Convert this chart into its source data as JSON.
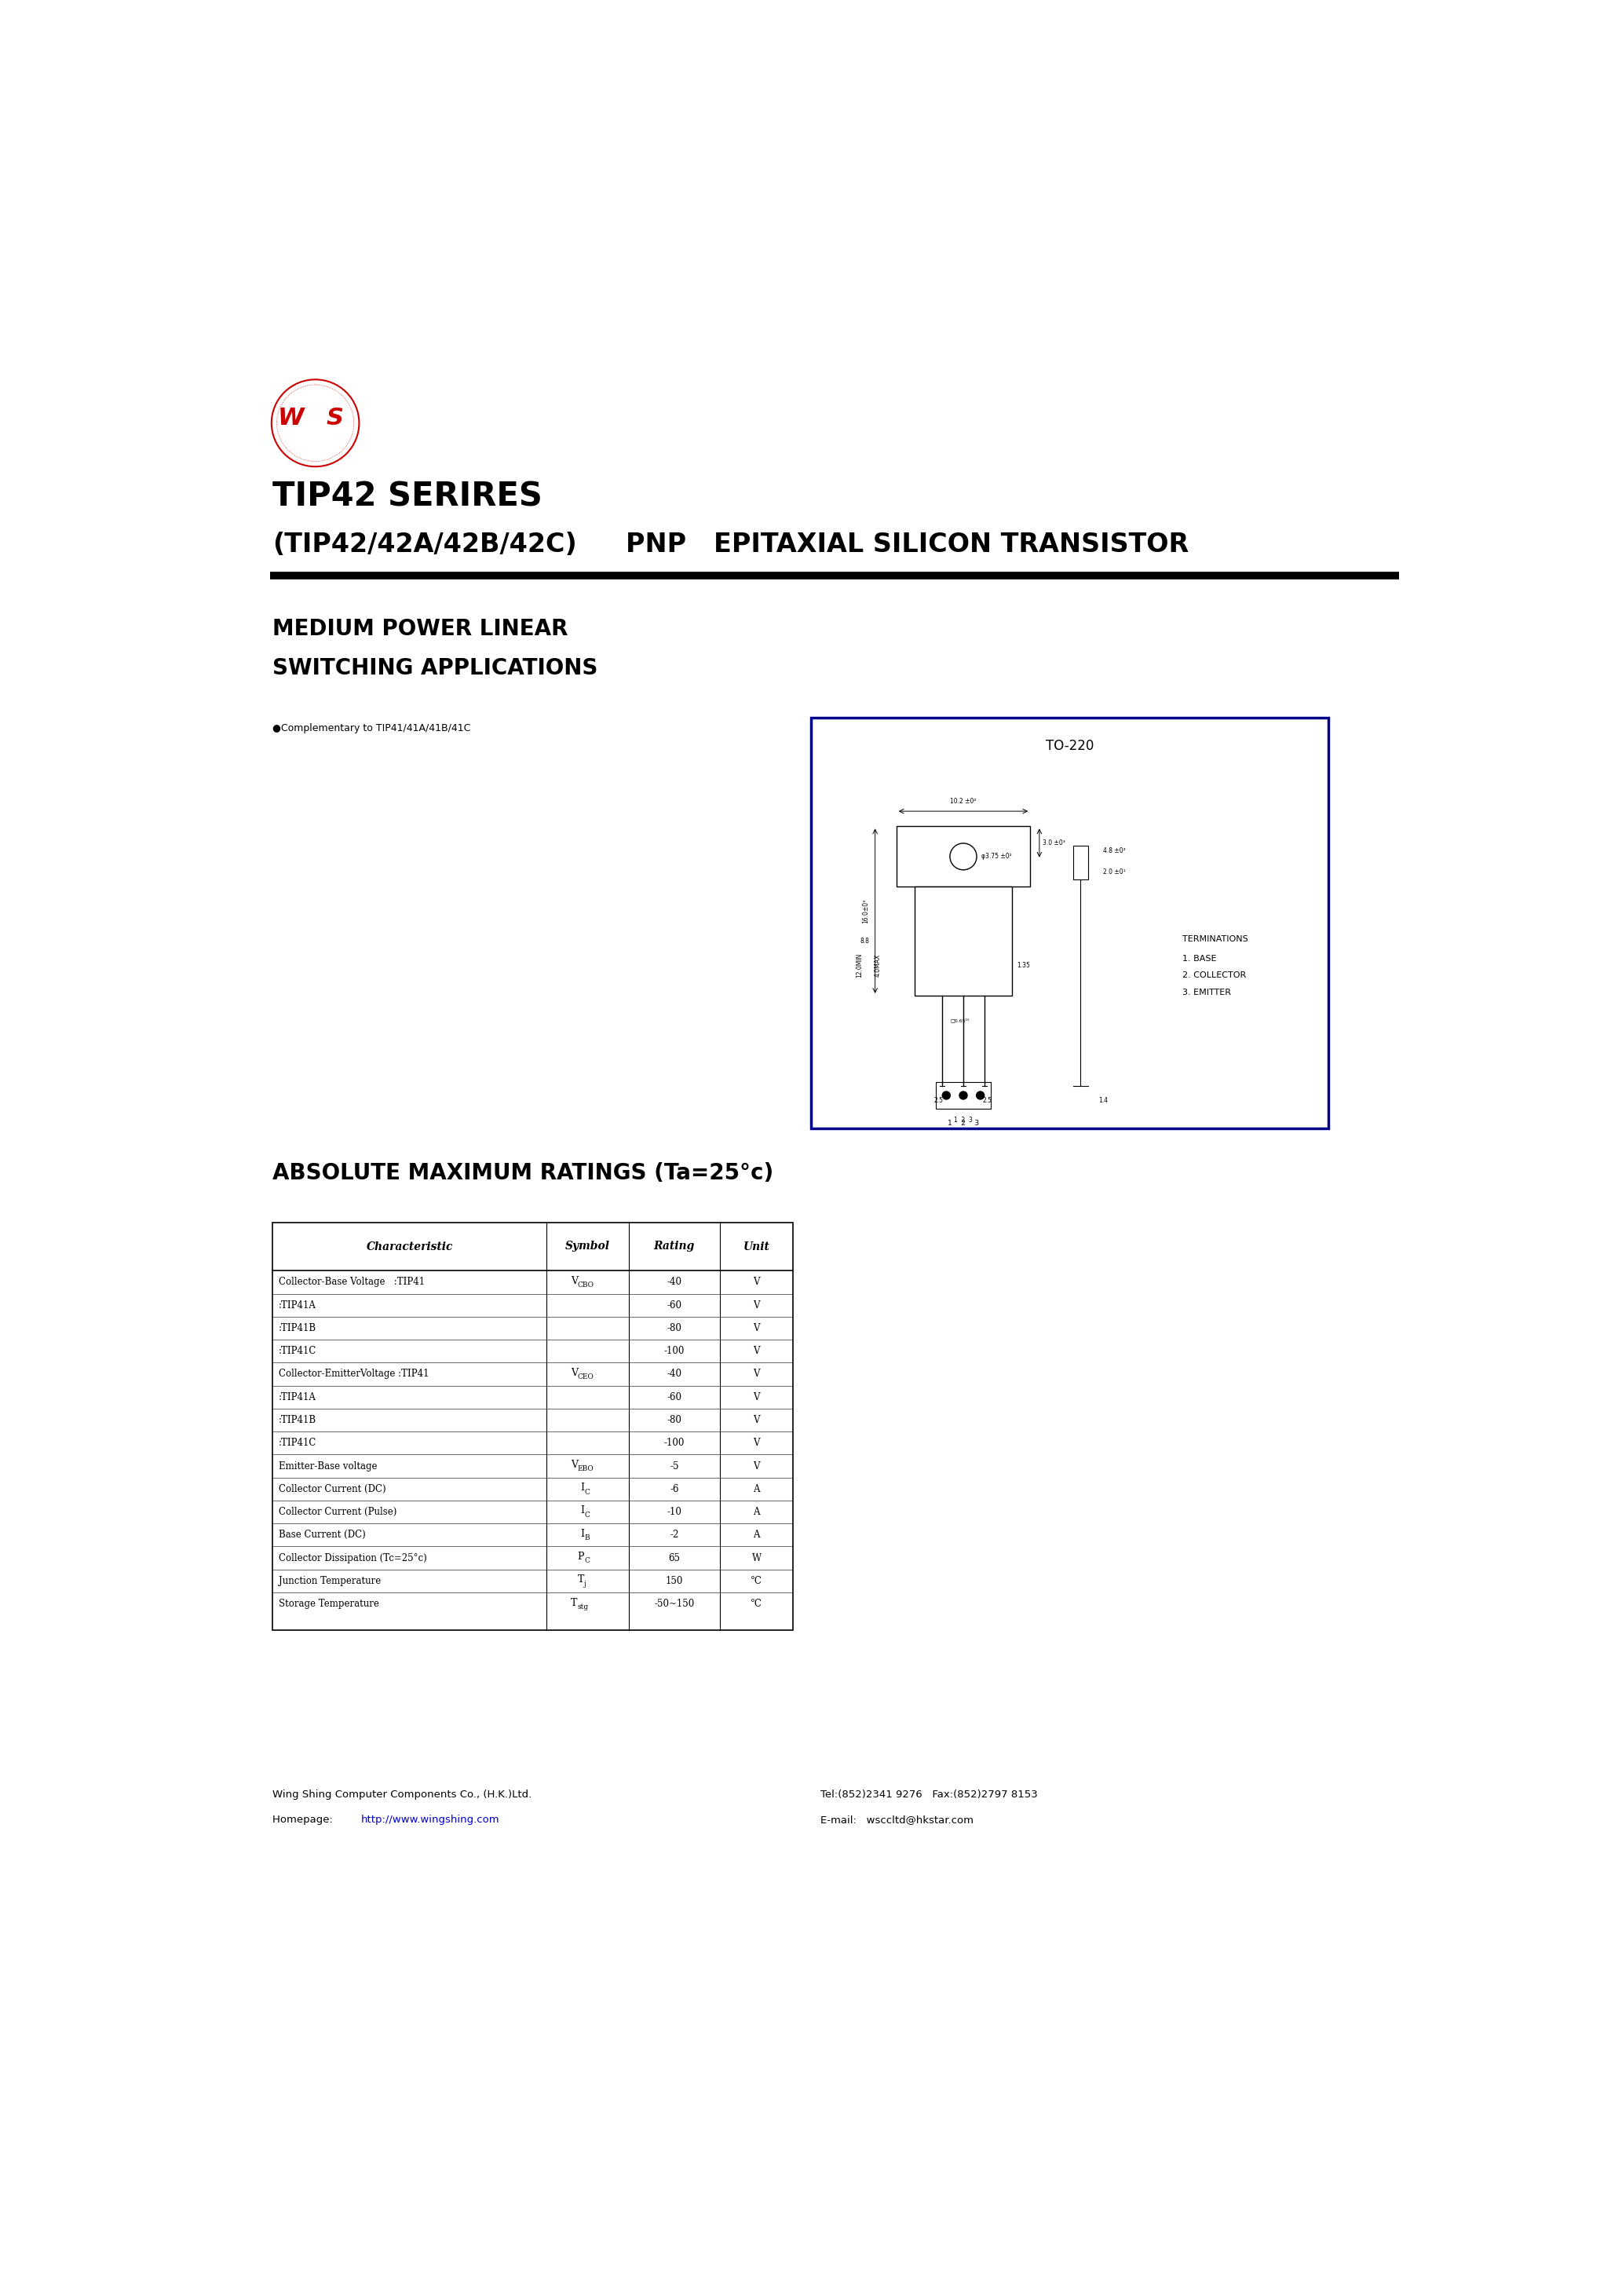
{
  "page_width": 20.66,
  "page_height": 29.24,
  "bg_color": "#ffffff",
  "logo_color": "#cc0000",
  "title_line1": "TIP42 SERIRES",
  "title_line2": "(TIP42/42A/42B/42C)",
  "title_right": "PNP   EPITAXIAL SILICON TRANSISTOR",
  "section1": "MEDIUM POWER LINEAR",
  "section2": "SWITCHING APPLICATIONS",
  "complementary": "●Complementary to TIP41/41A/41B/41C",
  "package_label": "TO-220",
  "terminations_title": "TERMINATIONS",
  "terminations_lines": [
    "1. BASE",
    "2. COLLECTOR",
    "3. EMITTER"
  ],
  "abs_max_title": "ABSOLUTE MAXIMUM RATINGS (Ta=25°c)",
  "table_headers": [
    "Characteristic",
    "Symbol",
    "Rating",
    "Unit"
  ],
  "table_rows": [
    [
      "Collector-Base Voltage   :TIP41",
      "VCBO",
      "-40",
      "V"
    ],
    [
      "                    :TIP41A",
      "",
      "-60",
      "V"
    ],
    [
      "                    :TIP41B",
      "",
      "-80",
      "V"
    ],
    [
      "                    :TIP41C",
      "",
      "-100",
      "V"
    ],
    [
      "Collector-EmitterVoltage :TIP41",
      "VCEO",
      "-40",
      "V"
    ],
    [
      "                    :TIP41A",
      "",
      "-60",
      "V"
    ],
    [
      "                    :TIP41B",
      "",
      "-80",
      "V"
    ],
    [
      "                    :TIP41C",
      "",
      "-100",
      "V"
    ],
    [
      "Emitter-Base voltage",
      "VEBO",
      "-5",
      "V"
    ],
    [
      "Collector Current (DC)",
      "IC",
      "-6",
      "A"
    ],
    [
      "Collector Current (Pulse)",
      "IC",
      "-10",
      "A"
    ],
    [
      "Base Current (DC)",
      "IB",
      "-2",
      "A"
    ],
    [
      "Collector Dissipation (Tc=25°c)",
      "PC",
      "65",
      "W"
    ],
    [
      "Junction Temperature",
      "TJ",
      "150",
      "°C"
    ],
    [
      "Storage Temperature",
      "Tstg",
      "-50~150",
      "°C"
    ]
  ],
  "sym_display": {
    "VCBO": [
      "V",
      "CBO"
    ],
    "VCEO": [
      "V",
      "CEO"
    ],
    "VEBO": [
      "V",
      "EBO"
    ],
    "IC": [
      "I",
      "C"
    ],
    "IB": [
      "I",
      "B"
    ],
    "PC": [
      "P",
      "C"
    ],
    "TJ": [
      "T",
      "j"
    ],
    "Tstg": [
      "T",
      "stg"
    ]
  },
  "footer_left1": "Wing Shing Computer Components Co., (H.K.)Ltd.",
  "footer_left2_pre": "Homepage:  ",
  "footer_left2_link": "http://www.wingshing.com",
  "footer_right1": "Tel:(852)2341 9276   Fax:(852)2797 8153",
  "footer_right2_pre": "E-mail:   ",
  "footer_right2_rest": "wsccltd@hkstar.com",
  "link_color": "#0000cc"
}
